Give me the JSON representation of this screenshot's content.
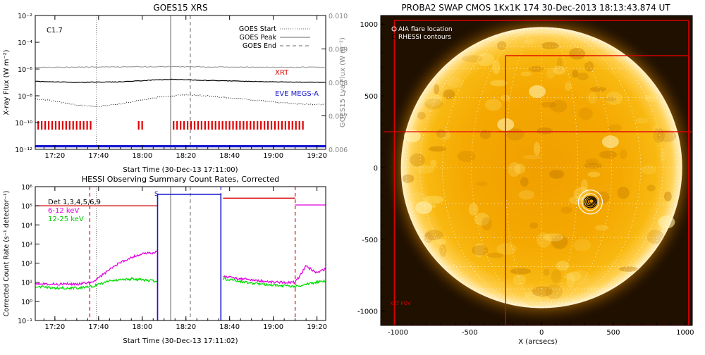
{
  "chart_data": [
    {
      "id": "goes",
      "type": "line",
      "title": "GOES15 XRS",
      "xlabel": "Start Time (30-Dec-13 17:11:00)",
      "ylabel": "X-ray Flux (W m⁻²)",
      "y2label": "GOES15 Lya Flux (W m⁻²)",
      "xlim": [
        "17:11",
        "19:24"
      ],
      "ylim": [
        1e-12,
        0.01
      ],
      "yscale": "log",
      "y2lim": [
        0.006,
        0.01
      ],
      "x_ticks": [
        "17:20",
        "17:40",
        "18:00",
        "18:20",
        "18:40",
        "19:00",
        "19:20"
      ],
      "y_ticks": [
        "10⁻¹²",
        "10⁻¹⁰",
        "10⁻⁸",
        "10⁻⁶",
        "10⁻⁴",
        "10⁻²"
      ],
      "y2_ticks": [
        "0.006",
        "0.007",
        "0.008",
        "0.009",
        "0.010"
      ],
      "class_label": "C1.7",
      "legend": {
        "position": "top-right",
        "entries": [
          {
            "label": "GOES Start",
            "style": "dotted"
          },
          {
            "label": "GOES Peak",
            "style": "solid"
          },
          {
            "label": "GOES End",
            "style": "dashed"
          }
        ]
      },
      "annotations": [
        {
          "text": "XRT",
          "color": "#d40000"
        },
        {
          "text": "EVE MEGS-A",
          "color": "#1818d0"
        }
      ],
      "event_lines": {
        "start": "17:39",
        "peak": "18:13",
        "end": "18:22"
      },
      "series": [
        {
          "name": "long channel",
          "color": "#000000",
          "style": "solid",
          "x": [
            "17:11",
            "17:30",
            "17:50",
            "18:05",
            "18:15",
            "18:30",
            "19:00",
            "19:24"
          ],
          "y": [
            1.2e-07,
            1e-07,
            1.1e-07,
            1.5e-07,
            1.7e-07,
            1.4e-07,
            1.1e-07,
            1e-07
          ]
        },
        {
          "name": "Lya",
          "color": "#909090",
          "style": "solid",
          "x": [
            "17:11",
            "17:40",
            "18:10",
            "18:40",
            "19:24"
          ],
          "y": [
            0.00845,
            0.00846,
            0.00847,
            0.00846,
            0.00845
          ]
        },
        {
          "name": "short channel",
          "color": "#000000",
          "style": "dotted",
          "x": [
            "17:11",
            "17:20",
            "17:30",
            "17:40",
            "17:50",
            "18:00",
            "18:10",
            "18:20",
            "18:30",
            "18:40",
            "18:50",
            "19:00",
            "19:10",
            "19:24"
          ],
          "y": [
            6e-09,
            4e-09,
            2e-09,
            1.6e-09,
            2.5e-09,
            5e-09,
            9e-09,
            1.2e-08,
            1e-08,
            7e-09,
            5e-09,
            3.5e-09,
            2.5e-09,
            2.2e-09
          ]
        }
      ],
      "xrt_coverage": [
        [
          "17:12",
          "17:37"
        ],
        [
          "17:58",
          "18:01"
        ],
        [
          "18:14",
          "19:14"
        ]
      ],
      "eve_coverage": [
        [
          "17:11",
          "19:24"
        ]
      ]
    },
    {
      "id": "hessi",
      "type": "line",
      "title": "HESSI Observing Summary Count Rates, Corrected",
      "xlabel": "Start Time (30-Dec-13 17:11:02)",
      "ylabel": "Corrected Count Rate (s⁻¹ detector⁻¹)",
      "xlim": [
        "17:11",
        "19:24"
      ],
      "ylim": [
        0.1,
        1000000.0
      ],
      "yscale": "log",
      "x_ticks": [
        "17:20",
        "17:40",
        "18:00",
        "18:20",
        "18:40",
        "19:00",
        "19:20"
      ],
      "y_ticks": [
        "10⁻¹",
        "10⁰",
        "10¹",
        "10²",
        "10³",
        "10⁴",
        "10⁵",
        "10⁶"
      ],
      "legend": {
        "position": "top-left",
        "entries": [
          {
            "label": "Det 1,3,4,5,6,9",
            "color": "#000000"
          },
          {
            "label": "6-12 keV",
            "color": "#e000e0"
          },
          {
            "label": "12-25 keV",
            "color": "#00dd00"
          }
        ]
      },
      "annotations": [
        {
          "text": "S",
          "color": "#1818d0"
        }
      ],
      "event_lines": {
        "start": "17:39",
        "peak": "18:13",
        "end": "18:22"
      },
      "night_lines": [
        "17:36",
        "19:10"
      ],
      "saa_lines": [
        "18:07",
        "18:36"
      ],
      "series": [
        {
          "name": "6-12 keV",
          "color": "#e000e0",
          "segments": [
            {
              "x": [
                "17:11",
                "17:20",
                "17:30",
                "17:37",
                "17:42",
                "17:48",
                "17:55",
                "18:00",
                "18:05",
                "18:07"
              ],
              "y": [
                9,
                8,
                8,
                10,
                25,
                80,
                200,
                300,
                350,
                400
              ]
            },
            {
              "x": [
                "18:37",
                "18:50",
                "19:00",
                "19:10",
                "19:12",
                "19:15",
                "19:20",
                "19:24"
              ],
              "y": [
                20,
                13,
                10,
                10,
                20,
                70,
                30,
                50
              ]
            }
          ]
        },
        {
          "name": "12-25 keV",
          "color": "#00dd00",
          "segments": [
            {
              "x": [
                "17:11",
                "17:20",
                "17:30",
                "17:37",
                "17:45",
                "17:55",
                "18:05",
                "18:07"
              ],
              "y": [
                6,
                5,
                5,
                6,
                12,
                15,
                12,
                10
              ]
            },
            {
              "x": [
                "18:37",
                "18:50",
                "19:00",
                "19:10",
                "19:15",
                "19:24"
              ],
              "y": [
                15,
                9,
                7,
                6,
                8,
                12
              ]
            }
          ]
        },
        {
          "name": "attenuator",
          "color": "#d40000",
          "segments": [
            {
              "x": [
                "17:11",
                "18:07"
              ],
              "y": [
                100000.0,
                100000.0
              ]
            },
            {
              "x": [
                "18:37",
                "19:10"
              ],
              "y": [
                250000.0,
                250000.0
              ]
            }
          ]
        },
        {
          "name": "decimation",
          "color": "#e000e0",
          "segments": [
            {
              "x": [
                "18:07",
                "18:07"
              ],
              "y": [
                0.1,
                400
              ]
            },
            {
              "x": [
                "19:10",
                "19:24"
              ],
              "y": [
                110000.0,
                110000.0
              ]
            }
          ]
        },
        {
          "name": "SAA",
          "color": "#1818d0",
          "segments": [
            {
              "x": [
                "18:07",
                "18:07",
                "18:36",
                "18:36"
              ],
              "y": [
                0.1,
                400000.0,
                400000.0,
                0.1
              ]
            }
          ]
        }
      ]
    },
    {
      "id": "swap",
      "type": "scatter",
      "title": "PROBA2 SWAP CMOS 1Kx1K 174 30-Dec-2013 18:13:43.874 UT",
      "xlabel": "X (arcsecs)",
      "ylabel": "Y (arcsecs)",
      "xlim": [
        -1120,
        1050
      ],
      "ylim": [
        -1100,
        1060
      ],
      "x_ticks": [
        "-1000",
        "-500",
        "0",
        "500",
        "1000"
      ],
      "y_ticks": [
        "-1000",
        "-500",
        "0",
        "500",
        "1000"
      ],
      "legend": {
        "position": "top-left",
        "entries": [
          {
            "label": "AIA flare location",
            "color": "#ffffff"
          },
          {
            "label": "RHESSI contours",
            "color": "#000000"
          }
        ]
      },
      "corner_label": "XRT FOV",
      "solar_radius": 976,
      "flare_location": [
        340,
        -240
      ],
      "xrt_fov": [
        [
          -1025,
          -1100,
          1025,
          1025
        ],
        [
          -250,
          -1100,
          1025,
          780
        ]
      ],
      "hessi_rows": [
        [
          -1100,
          250
        ],
        [
          -300,
          250
        ]
      ],
      "colors": {
        "disk": "#f6a800",
        "limb": "#fff0c0",
        "background": "#201000",
        "fov": "#e00000",
        "plot_frame": "#000000"
      }
    }
  ]
}
